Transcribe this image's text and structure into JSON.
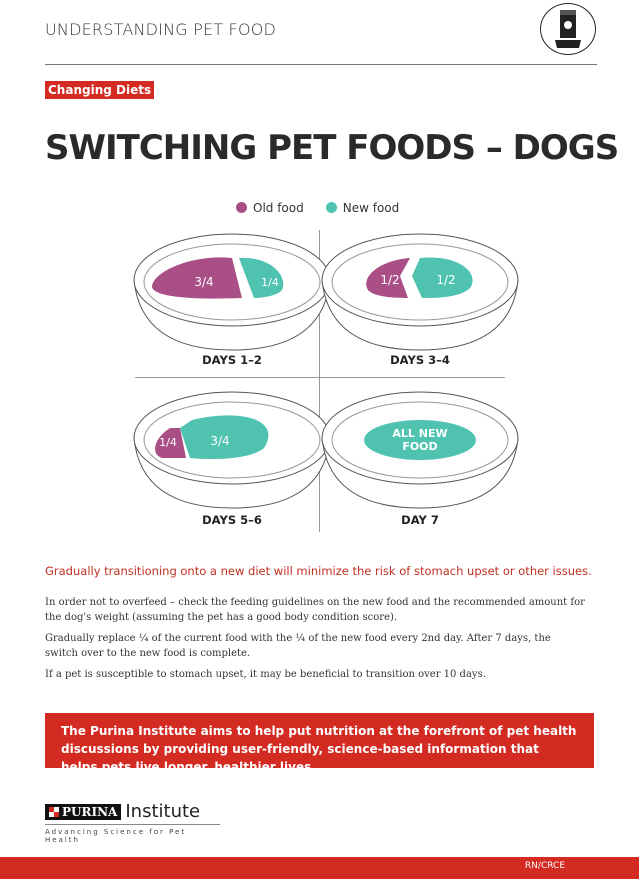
{
  "header": {
    "title": "UNDERSTANDING PET FOOD",
    "icon": "pet-food-bag-icon"
  },
  "tag": "Changing Diets",
  "title": "SWITCHING PET FOODS – DOGS",
  "legend": {
    "old": "Old food",
    "new": "New food",
    "old_color": "#a94f86",
    "new_color": "#4fc2b0"
  },
  "panels": [
    {
      "label": "DAYS 1–2",
      "old": "3/4",
      "new": "1/4"
    },
    {
      "label": "DAYS 3–4",
      "old": "1/2",
      "new": "1/2"
    },
    {
      "label": "DAYS 5–6",
      "old": "1/4",
      "new": "3/4"
    },
    {
      "label": "DAY 7",
      "all": "ALL NEW",
      "all2": "FOOD"
    }
  ],
  "intro": "Gradually transitioning onto a new diet will minimize the risk of stomach upset or other issues.",
  "paragraphs": [
    "In order not to overfeed – check the feeding guidelines on the new food and the recommended amount for the dog's weight (assuming the pet has a good body condition score).",
    "Gradually replace ¼ of the current food with the ¼ of the new food every 2nd day. After 7 days, the switch over to the new food is complete.",
    "If a pet is susceptible to stomach upset, it may be beneficial to transition over 10 days."
  ],
  "banner": "The Purina Institute aims to help put nutrition at the forefront of pet health discussions by providing user-friendly, science-based information that helps pets live longer, healthier lives.",
  "brand": {
    "purina": "PURINA",
    "institute": "Institute",
    "tagline": "Advancing Science for Pet Health"
  },
  "footer": "RN/CRCE"
}
